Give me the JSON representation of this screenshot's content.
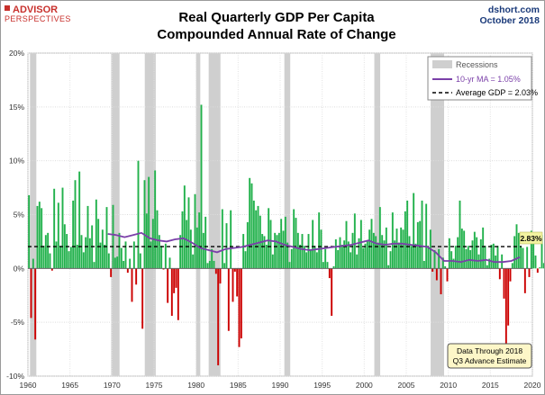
{
  "header": {
    "logo_line1": "ADVISOR",
    "logo_line2": "PERSPECTIVES",
    "site": "dshort.com",
    "date": "October 2018",
    "title_line1": "Real Quarterly GDP Per Capita",
    "title_line2": "Compounded Annual Rate of Change"
  },
  "colors": {
    "positive_bar": "#22b14c",
    "negative_bar": "#cc0000",
    "recession": "#cfcfcf",
    "ma_line": "#7a3fa8",
    "average_line": "#000000",
    "last_value_box": "#f3f3a0",
    "data_note_box": "#fdf7c8",
    "logo": "#c8302c"
  },
  "chart_data": {
    "type": "bar",
    "title": "Real Quarterly GDP Per Capita",
    "subtitle": "Compounded Annual Rate of Change",
    "xlabel": "",
    "ylabel": "",
    "xlim": [
      1960,
      2020
    ],
    "ylim": [
      -10,
      20
    ],
    "x_ticks": [
      "1960",
      "1965",
      "1970",
      "1975",
      "1980",
      "1985",
      "1990",
      "1995",
      "2000",
      "2005",
      "2010",
      "2015",
      "2020"
    ],
    "y_ticks": [
      "-10%",
      "-5%",
      "0%",
      "5%",
      "10%",
      "15%",
      "20%"
    ],
    "grid": true,
    "legend_position": "top-right",
    "legend": {
      "recessions": "Recessions",
      "ma": "10-yr MA = 1.05%",
      "average": "Average GDP = 2.03%"
    },
    "average_value": 2.03,
    "last_value": 2.83,
    "last_value_label": "2.83%",
    "data_note_line1": "Data Through 2018",
    "data_note_line2": "Q3 Advance Estimate",
    "recessions": [
      [
        1960.25,
        1961.0
      ],
      [
        1969.9,
        1970.9
      ],
      [
        1973.9,
        1975.2
      ],
      [
        1980.0,
        1980.5
      ],
      [
        1981.5,
        1982.9
      ],
      [
        1990.5,
        1991.2
      ],
      [
        2001.2,
        2001.9
      ],
      [
        2007.9,
        2009.5
      ]
    ],
    "series": [
      {
        "name": "Quarterly change",
        "start": 1960.0,
        "step": 0.25,
        "values": [
          6.8,
          -4.6,
          0.9,
          -6.6,
          5.8,
          6.2,
          5.6,
          2.1,
          3.1,
          3.3,
          1.4,
          -0.2,
          7.4,
          2.5,
          6.1,
          2.1,
          7.5,
          4.1,
          3.2,
          1.6,
          2.0,
          6.3,
          8.2,
          2.2,
          9.0,
          3.1,
          1.5,
          2.9,
          5.8,
          2.8,
          4.0,
          0.6,
          6.4,
          4.6,
          2.4,
          3.6,
          2.2,
          5.7,
          1.4,
          -0.8,
          5.9,
          1.0,
          1.1,
          3.3,
          1.9,
          0.7,
          2.5,
          -0.4,
          0.9,
          -3.1,
          2.5,
          -1.5,
          10.0,
          1.4,
          -5.6,
          8.2,
          5.1,
          8.5,
          2.5,
          4.6,
          9.1,
          5.4,
          3.1,
          2.1,
          -0.1,
          2.3,
          -3.2,
          1.0,
          -4.4,
          -2.3,
          -1.8,
          -4.8,
          3.1,
          5.3,
          7.7,
          4.5,
          6.6,
          3.6,
          1.3,
          6.9,
          3.8,
          5.2,
          15.2,
          3.3,
          4.8,
          0.5,
          0.7,
          1.8,
          0.7,
          -0.5,
          -9.0,
          -1.4,
          5.5,
          0.5,
          4.2,
          -5.8,
          5.4,
          -3.1,
          -0.3,
          -2.6,
          -7.3,
          -6.5,
          3.2,
          1.6,
          4.3,
          8.4,
          7.9,
          6.3,
          5.4,
          5.8,
          4.9,
          3.2,
          3.0,
          2.2,
          5.6,
          4.5,
          1.3,
          3.3,
          3.1,
          3.3,
          4.6,
          3.5,
          4.8,
          2.4,
          0.6,
          1.8,
          5.5,
          4.7,
          3.3,
          2.2,
          3.2,
          2.1,
          1.5,
          3.2,
          1.7,
          4.5,
          2.1,
          1.5,
          5.2,
          3.6,
          0.6,
          1.8,
          0.6,
          -0.9,
          -4.4,
          0.2,
          2.7,
          1.7,
          2.9,
          2.2,
          2.6,
          4.4,
          2.5,
          1.5,
          3.3,
          5.1,
          1.3,
          2.8,
          4.5,
          1.9,
          2.3,
          2.6,
          3.6,
          4.6,
          3.3,
          3.0,
          2.4,
          5.7,
          3.1,
          2.6,
          3.8,
          0.3,
          1.6,
          5.2,
          2.6,
          3.7,
          2.4,
          3.8,
          3.6,
          5.3,
          6.3,
          3.0,
          2.1,
          7.0,
          2.3,
          4.3,
          4.4,
          6.3,
          0.7,
          6.0,
          1.9,
          3.6,
          -0.3,
          1.7,
          -1.1,
          1.8,
          -2.4,
          1.0,
          0.2,
          -1.2,
          2.8,
          1.6,
          0.9,
          2.1,
          2.9,
          6.3,
          3.7,
          3.5,
          1.8,
          2.1,
          1.7,
          2.6,
          3.4,
          2.9,
          1.3,
          2.7,
          3.8,
          2.1,
          0.3,
          0.9,
          2.2,
          2.3,
          1.2,
          2.1,
          -1.0,
          1.3,
          -2.8,
          -9.1,
          -5.3,
          -1.2,
          0.5,
          3.0,
          4.1,
          3.3,
          2.1,
          1.9,
          -2.3,
          2.0,
          -0.8,
          3.5,
          2.7,
          1.2,
          -0.4,
          0.1,
          3.1,
          0.5,
          2.4,
          3.2,
          -1.8,
          4.4,
          4.2,
          1.8,
          1.5,
          1.7,
          0.9,
          0.1,
          2.3,
          1.7,
          2.1,
          1.4,
          2.2,
          1.5,
          2.6,
          2.3,
          1.5,
          3.6,
          2.83
        ]
      },
      {
        "name": "10-yr MA",
        "points": [
          [
            1969.5,
            3.2
          ],
          [
            1970.5,
            3.1
          ],
          [
            1971.5,
            2.9
          ],
          [
            1972.5,
            3.1
          ],
          [
            1973.5,
            3.3
          ],
          [
            1974.5,
            2.8
          ],
          [
            1975.5,
            2.6
          ],
          [
            1976.5,
            2.5
          ],
          [
            1977.5,
            2.7
          ],
          [
            1978.5,
            2.8
          ],
          [
            1979.5,
            2.4
          ],
          [
            1980.5,
            1.9
          ],
          [
            1981.5,
            1.7
          ],
          [
            1982.5,
            1.5
          ],
          [
            1983.5,
            1.8
          ],
          [
            1984.5,
            1.9
          ],
          [
            1985.5,
            2.0
          ],
          [
            1986.5,
            2.2
          ],
          [
            1987.5,
            2.4
          ],
          [
            1988.5,
            2.6
          ],
          [
            1989.5,
            2.5
          ],
          [
            1990.5,
            2.2
          ],
          [
            1991.5,
            2.0
          ],
          [
            1992.5,
            1.8
          ],
          [
            1993.5,
            1.7
          ],
          [
            1994.5,
            1.8
          ],
          [
            1995.5,
            1.9
          ],
          [
            1996.5,
            2.0
          ],
          [
            1997.5,
            2.1
          ],
          [
            1998.5,
            2.2
          ],
          [
            1999.5,
            2.4
          ],
          [
            2000.5,
            2.6
          ],
          [
            2001.5,
            2.3
          ],
          [
            2002.5,
            2.2
          ],
          [
            2003.5,
            2.3
          ],
          [
            2004.5,
            2.3
          ],
          [
            2005.5,
            2.2
          ],
          [
            2006.5,
            2.1
          ],
          [
            2007.5,
            2.0
          ],
          [
            2008.5,
            1.5
          ],
          [
            2009.5,
            0.7
          ],
          [
            2010.5,
            0.7
          ],
          [
            2011.5,
            0.6
          ],
          [
            2012.5,
            0.8
          ],
          [
            2013.5,
            0.7
          ],
          [
            2014.5,
            0.8
          ],
          [
            2015.5,
            0.6
          ],
          [
            2016.5,
            0.6
          ],
          [
            2017.5,
            0.7
          ],
          [
            2018.5,
            1.05
          ]
        ]
      }
    ]
  }
}
